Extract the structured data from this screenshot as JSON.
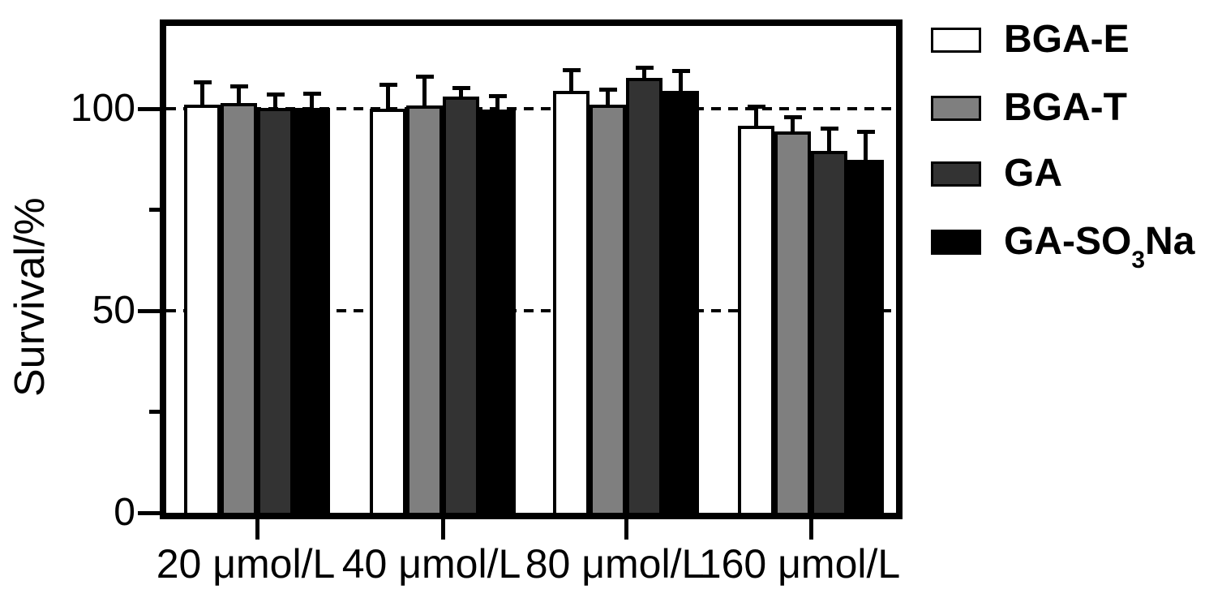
{
  "chart_data": {
    "type": "bar",
    "title": "",
    "xlabel": "",
    "ylabel": "Survival/%",
    "ylim": [
      0,
      120.5
    ],
    "yticks_major": [
      {
        "value": 0,
        "label": "0"
      },
      {
        "value": 50,
        "label": "50"
      },
      {
        "value": 100,
        "label": "100"
      }
    ],
    "yticks_minor": [
      25,
      75
    ],
    "gridline_values": [
      50,
      100
    ],
    "grid_style": "dashed",
    "legend_position": "right-top",
    "categories": [
      "20 μmol/L",
      "40 μmol/L",
      "80 μmol/L",
      "160 μmol/L"
    ],
    "series": [
      {
        "name": "BGA-E",
        "color": "#ffffff",
        "values": [
          101.0,
          100.0,
          104.4,
          95.8
        ],
        "errors": [
          5.3,
          5.6,
          4.8,
          4.5
        ]
      },
      {
        "name": "BGA-T",
        "color": "#7f7f7f",
        "values": [
          101.5,
          100.8,
          101.0,
          94.3
        ],
        "errors": [
          3.7,
          6.9,
          3.4,
          3.4
        ]
      },
      {
        "name": "GA",
        "color": "#333333",
        "values": [
          100.3,
          103.0,
          107.6,
          89.5
        ],
        "errors": [
          2.9,
          1.9,
          2.3,
          5.3
        ]
      },
      {
        "name": "GA-SO3Na",
        "color": "#000000",
        "values": [
          100.2,
          99.8,
          104.4,
          87.3
        ],
        "errors": [
          3.3,
          3.1,
          4.7,
          6.6
        ]
      }
    ]
  },
  "legend": {
    "items": [
      {
        "pre": "BGA-E",
        "sub": "",
        "post": "",
        "color": "#ffffff"
      },
      {
        "pre": "BGA-T",
        "sub": "",
        "post": "",
        "color": "#7f7f7f"
      },
      {
        "pre": "GA",
        "sub": "",
        "post": "",
        "color": "#333333"
      },
      {
        "pre": "GA-SO",
        "sub": "3",
        "post": "Na",
        "color": "#000000"
      }
    ]
  }
}
